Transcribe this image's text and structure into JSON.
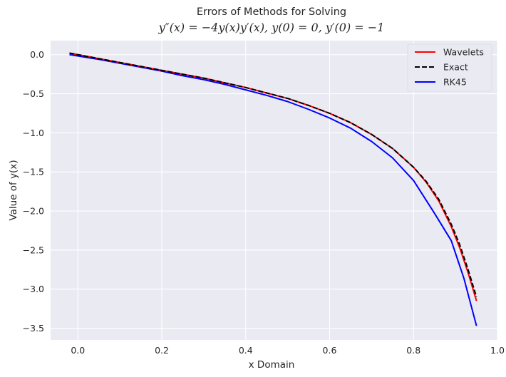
{
  "chart_data": {
    "type": "line",
    "title": "Errors of Methods for Solving",
    "subtitle": "y″(x) = −4y(x)y′(x), y(0) = 0, y′(0) = −1",
    "xlabel": "x Domain",
    "ylabel": "Value of y(x)",
    "xlim": [
      -0.065,
      1.0
    ],
    "ylim": [
      -3.65,
      0.18
    ],
    "xticks": [
      0.0,
      0.2,
      0.4,
      0.6,
      0.8,
      1.0
    ],
    "xtick_labels": [
      "0.0",
      "0.2",
      "0.4",
      "0.6",
      "0.8",
      "1.0"
    ],
    "yticks": [
      0.0,
      -0.5,
      -1.0,
      -1.5,
      -2.0,
      -2.5,
      -3.0,
      -3.5
    ],
    "ytick_labels": [
      "0.0",
      "−0.5",
      "−1.0",
      "−1.5",
      "−2.0",
      "−2.5",
      "−3.0",
      "−3.5"
    ],
    "grid": true,
    "legend": "top-right",
    "series": [
      {
        "name": "Wavelets",
        "color": "#ff0000",
        "style": "solid",
        "x": [
          -0.02,
          0.05,
          0.1,
          0.15,
          0.2,
          0.25,
          0.3,
          0.35,
          0.4,
          0.45,
          0.5,
          0.55,
          0.6,
          0.65,
          0.7,
          0.75,
          0.8,
          0.83,
          0.86,
          0.89,
          0.91,
          0.93,
          0.95
        ],
        "y": [
          0.02,
          -0.05,
          -0.1,
          -0.15,
          -0.2,
          -0.25,
          -0.3,
          -0.36,
          -0.42,
          -0.49,
          -0.56,
          -0.65,
          -0.75,
          -0.87,
          -1.02,
          -1.2,
          -1.44,
          -1.63,
          -1.87,
          -2.2,
          -2.47,
          -2.79,
          -3.15
        ]
      },
      {
        "name": "Exact",
        "color": "#000000",
        "style": "dashed",
        "x": [
          -0.02,
          0.05,
          0.1,
          0.15,
          0.2,
          0.25,
          0.3,
          0.35,
          0.4,
          0.45,
          0.5,
          0.55,
          0.6,
          0.65,
          0.7,
          0.75,
          0.8,
          0.83,
          0.86,
          0.89,
          0.91,
          0.93,
          0.95
        ],
        "y": [
          0.02,
          -0.05,
          -0.1,
          -0.15,
          -0.2,
          -0.25,
          -0.3,
          -0.36,
          -0.42,
          -0.49,
          -0.56,
          -0.65,
          -0.75,
          -0.87,
          -1.02,
          -1.2,
          -1.44,
          -1.62,
          -1.85,
          -2.17,
          -2.43,
          -2.75,
          -3.1
        ]
      },
      {
        "name": "RK45",
        "color": "#0000ff",
        "style": "solid",
        "x": [
          -0.02,
          0.05,
          0.1,
          0.15,
          0.2,
          0.25,
          0.3,
          0.35,
          0.4,
          0.45,
          0.5,
          0.55,
          0.6,
          0.65,
          0.7,
          0.75,
          0.8,
          0.85,
          0.89,
          0.92,
          0.95
        ],
        "y": [
          0.0,
          -0.06,
          -0.11,
          -0.16,
          -0.21,
          -0.27,
          -0.32,
          -0.38,
          -0.45,
          -0.52,
          -0.6,
          -0.7,
          -0.81,
          -0.94,
          -1.11,
          -1.32,
          -1.61,
          -2.03,
          -2.38,
          -2.86,
          -3.47
        ]
      }
    ]
  }
}
